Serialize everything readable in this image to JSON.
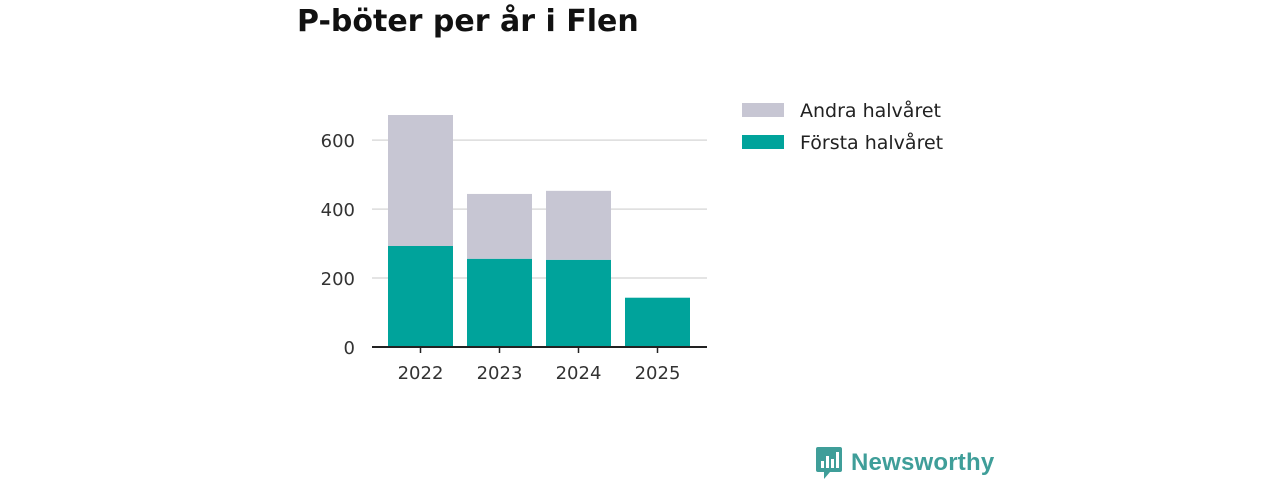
{
  "colors": {
    "first_half": "#00a39b",
    "second_half": "#c7c6d3",
    "grid": "#dcdcdc",
    "axis": "#222222",
    "brand": "#3f9e99"
  },
  "chart_data": {
    "type": "bar",
    "stacked": true,
    "title": "P-böter per år i Flen",
    "categories": [
      "2022",
      "2023",
      "2024",
      "2025"
    ],
    "series": [
      {
        "name": "Första halvåret",
        "color_key": "first_half",
        "values": [
          293,
          256,
          253,
          143
        ]
      },
      {
        "name": "Andra halvåret",
        "color_key": "second_half",
        "values": [
          380,
          188,
          200,
          0
        ]
      }
    ],
    "y_ticks": [
      0,
      200,
      400,
      600
    ],
    "ylim": [
      0,
      673
    ],
    "xlabel": "",
    "ylabel": "",
    "grid": true,
    "legend": {
      "placement": "right",
      "order": [
        "Andra halvåret",
        "Första halvåret"
      ]
    }
  },
  "brand": {
    "name": "Newsworthy",
    "icon": "newsworthy-logo-icon"
  }
}
